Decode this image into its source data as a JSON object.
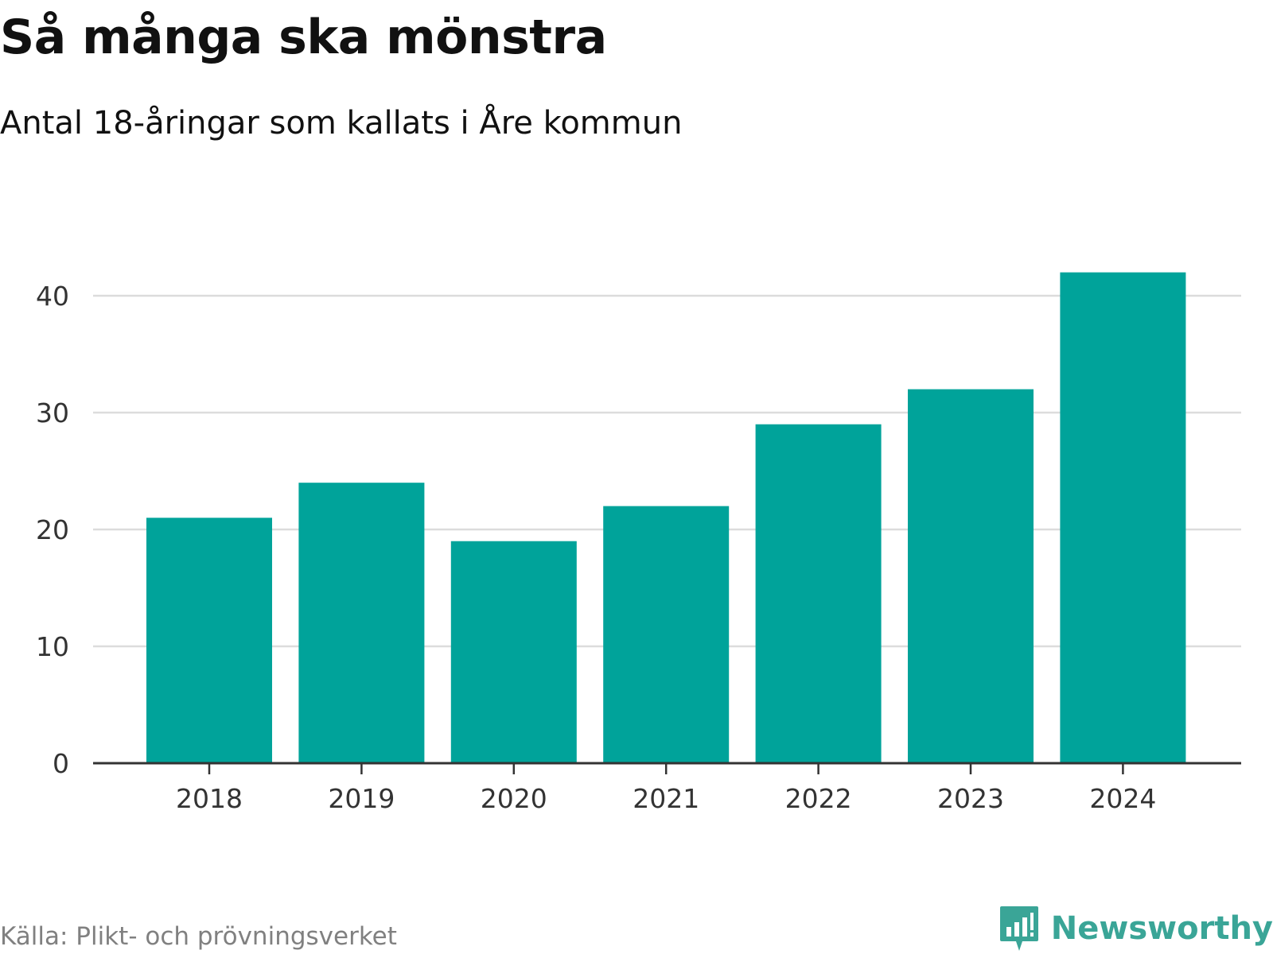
{
  "header": {
    "title": "Så många ska mönstra",
    "subtitle": "Antal 18-åringar som kallats i Åre kommun"
  },
  "footer": {
    "source": "Källa: Plikt- och prövningsverket",
    "brand": "Newsworthy"
  },
  "colors": {
    "bar": "#00a39a",
    "grid": "#dcdcdc",
    "axis": "#333333",
    "brand": "#3aa597"
  },
  "chart_data": {
    "type": "bar",
    "title": "Så många ska mönstra",
    "subtitle": "Antal 18-åringar som kallats i Åre kommun",
    "xlabel": "",
    "ylabel": "",
    "categories": [
      "2018",
      "2019",
      "2020",
      "2021",
      "2022",
      "2023",
      "2024"
    ],
    "values": [
      21,
      24,
      19,
      22,
      29,
      32,
      42
    ],
    "ylim": [
      0,
      40
    ],
    "yticks": [
      0,
      10,
      20,
      30,
      40
    ],
    "grid": true,
    "legend": "none"
  }
}
